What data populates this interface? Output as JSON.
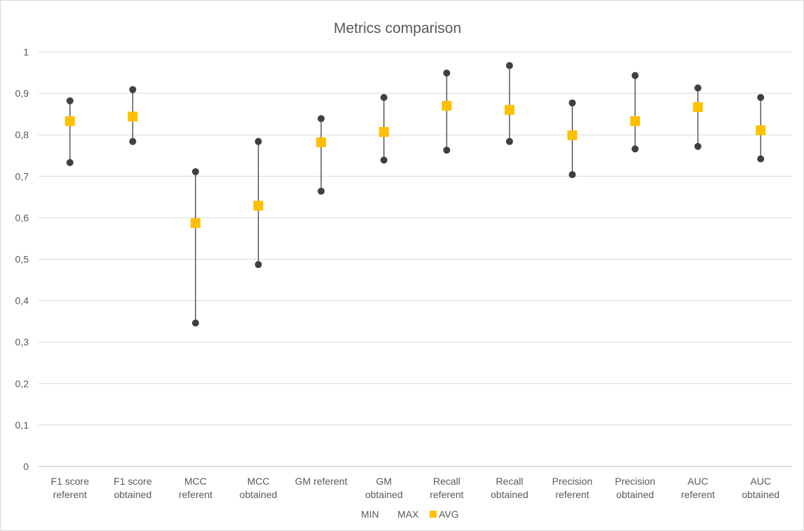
{
  "chart_data": {
    "type": "scatter",
    "title": "Metrics comparison",
    "xlabel": "",
    "ylabel": "",
    "ylim": [
      0,
      1
    ],
    "ytick_labels": [
      "0",
      "0,1",
      "0,2",
      "0,3",
      "0,4",
      "0,5",
      "0,6",
      "0,7",
      "0,8",
      "0,9",
      "1"
    ],
    "grid": true,
    "legend_position": "bottom",
    "categories": [
      [
        "F1 score",
        "referent"
      ],
      [
        "F1 score",
        "obtained"
      ],
      [
        "MCC",
        "referent"
      ],
      [
        "MCC",
        "obtained"
      ],
      [
        "GM referent"
      ],
      [
        "GM",
        "obtained"
      ],
      [
        "Recall",
        "referent"
      ],
      [
        "Recall",
        "obtained"
      ],
      [
        "Precision",
        "referent"
      ],
      [
        "Precision",
        "obtained"
      ],
      [
        "AUC",
        "referent"
      ],
      [
        "AUC",
        "obtained"
      ]
    ],
    "series": [
      {
        "name": "MIN",
        "color": "#404040",
        "marker": "circle",
        "values": [
          0.733,
          0.784,
          0.346,
          0.487,
          0.664,
          0.739,
          0.763,
          0.784,
          0.704,
          0.766,
          0.772,
          0.742
        ]
      },
      {
        "name": "MAX",
        "color": "#404040",
        "marker": "circle",
        "values": [
          0.882,
          0.909,
          0.711,
          0.784,
          0.839,
          0.89,
          0.949,
          0.967,
          0.877,
          0.943,
          0.913,
          0.89
        ]
      },
      {
        "name": "AVG",
        "color": "#FFC000",
        "marker": "square",
        "values": [
          0.833,
          0.844,
          0.587,
          0.629,
          0.782,
          0.807,
          0.87,
          0.86,
          0.799,
          0.833,
          0.867,
          0.811
        ]
      }
    ]
  }
}
